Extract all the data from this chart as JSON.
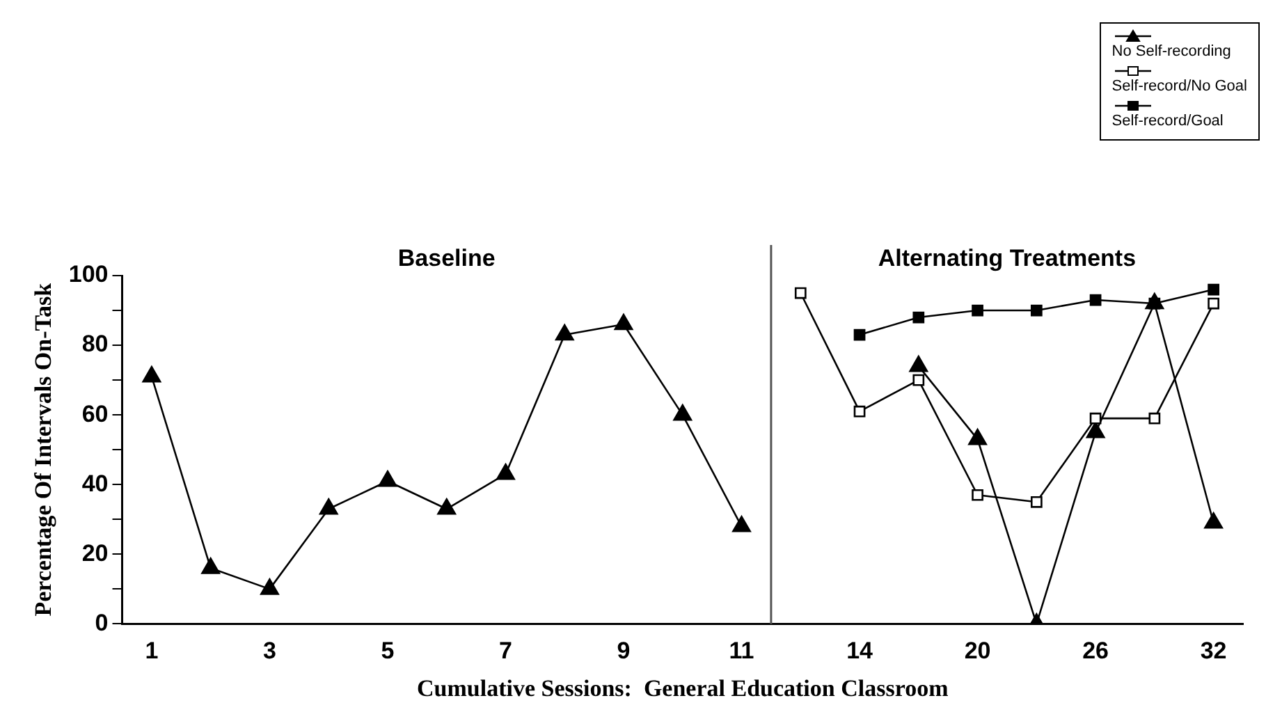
{
  "chart_data": {
    "type": "line",
    "xlabel": "Cumulative Sessions:  General Education Classroom",
    "ylabel": "Percentage Of Intervals On-Task",
    "categories": [
      "1",
      null,
      "3",
      null,
      "5",
      null,
      "7",
      null,
      "9",
      null,
      "11",
      null,
      "14",
      null,
      "20",
      null,
      "26",
      null,
      "32"
    ],
    "series": [
      {
        "name": "No Self-recording",
        "color": "#000000",
        "marker": "triangle",
        "values": [
          71,
          16,
          10,
          33,
          41,
          33,
          43,
          83,
          86,
          60,
          28,
          null,
          null,
          74,
          53,
          0,
          55,
          92,
          29
        ]
      },
      {
        "name": "Self-record/No Goal",
        "color": "#000000",
        "marker": "square",
        "values": [
          null,
          null,
          null,
          null,
          null,
          null,
          null,
          null,
          null,
          null,
          null,
          95,
          61,
          70,
          37,
          35,
          59,
          59,
          92
        ]
      },
      {
        "name": "Self-record/Goal",
        "color": "#000000",
        "marker": "square",
        "values": [
          null,
          null,
          null,
          null,
          null,
          null,
          null,
          null,
          null,
          null,
          null,
          null,
          83,
          88,
          90,
          90,
          93,
          92,
          96
        ]
      }
    ],
    "ylim": [
      0,
      100
    ],
    "yticks": [
      0,
      {
        "value": 10,
        "label": null
      },
      20,
      {
        "value": 30,
        "label": null
      },
      40,
      {
        "value": 50,
        "label": null
      },
      60,
      {
        "value": 70,
        "label": null
      },
      80,
      {
        "value": 90,
        "label": null
      },
      100
    ],
    "annotations": [
      "Baseline",
      "Alternating Treatments"
    ],
    "grid": false,
    "legend": "top right",
    "line_style": "solid"
  }
}
